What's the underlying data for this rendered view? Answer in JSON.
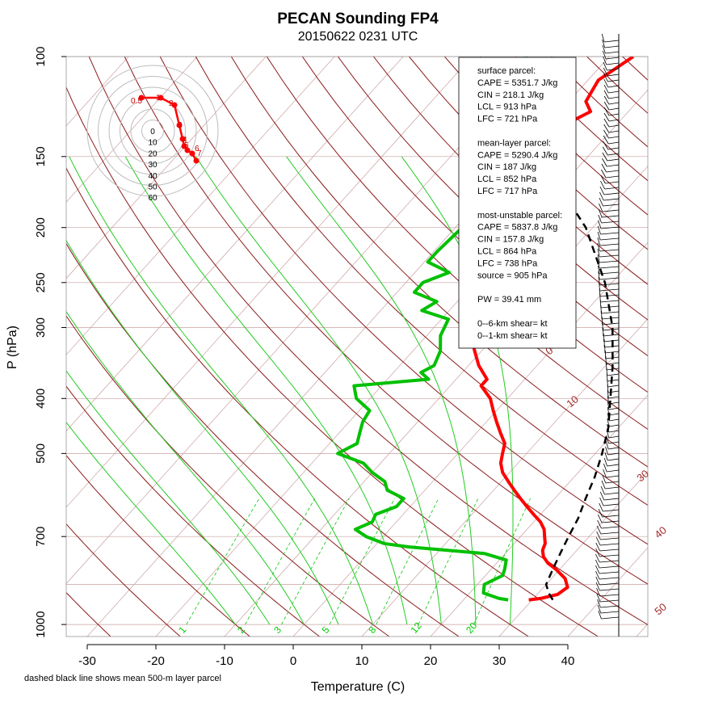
{
  "chart_data": {
    "type": "line",
    "title": "PECAN Sounding FP4",
    "subtitle": "20150622 0231 UTC",
    "xlabel": "Temperature (C)",
    "ylabel": "P (hPa)",
    "xlim": [
      -33,
      47
    ],
    "ylim": [
      1050,
      100
    ],
    "x_ticks": [
      "-30",
      "-20",
      "-10",
      "0",
      "10",
      "20",
      "30",
      "40"
    ],
    "x_tick_values": [
      -30,
      -20,
      -10,
      0,
      10,
      20,
      30,
      40
    ],
    "y_ticks": [
      "100",
      "150",
      "200",
      "250",
      "300",
      "400",
      "500",
      "700",
      "1000"
    ],
    "y_tick_values": [
      100,
      150,
      200,
      250,
      300,
      400,
      500,
      700,
      1000
    ],
    "y_scale": "log",
    "skew": "skew-T log-P",
    "footnote": "dashed black line shows mean 500-m layer parcel",
    "series": [
      {
        "name": "",
        "color": "#ff0000",
        "p": [
          905,
          900,
          885,
          860,
          830,
          800,
          780,
          760,
          740,
          720,
          700,
          680,
          660,
          640,
          620,
          600,
          580,
          560,
          540,
          520,
          500,
          480,
          460,
          440,
          420,
          400,
          380,
          370,
          350,
          330,
          310,
          290,
          270,
          250,
          230,
          210,
          200,
          190,
          170,
          155,
          150,
          145,
          140,
          135,
          130,
          125,
          120,
          115,
          110,
          105,
          100
        ],
        "t": [
          29.5,
          31,
          33,
          33.5,
          32,
          29.5,
          27.5,
          26,
          25,
          24.5,
          23.5,
          22.5,
          21,
          19,
          17,
          15,
          13,
          11,
          9,
          7.5,
          6.5,
          5.5,
          3.5,
          1.5,
          -0.5,
          -2.5,
          -5.5,
          -5.5,
          -8.5,
          -11,
          -13.5,
          -16,
          -18.5,
          -21,
          -24,
          -27.5,
          -29,
          -30,
          -32,
          -33,
          -31.5,
          -32.5,
          -31,
          -29.5,
          -27,
          -25.5,
          -27.5,
          -28,
          -28.5,
          -27.5,
          -26.5
        ]
      },
      {
        "name": "",
        "color": "#00c000",
        "p": [
          905,
          900,
          880,
          850,
          820,
          800,
          770,
          750,
          730,
          720,
          700,
          680,
          660,
          640,
          620,
          600,
          580,
          560,
          540,
          520,
          500,
          480,
          460,
          440,
          420,
          400,
          390,
          380,
          370,
          360,
          350,
          330,
          310,
          290,
          280,
          270,
          260,
          250,
          240,
          230,
          220,
          200,
          180,
          160,
          150,
          130,
          115,
          100
        ],
        "td": [
          26.5,
          25,
          22,
          21,
          22.5,
          22,
          21,
          17,
          5,
          1,
          -2.5,
          -5,
          -3.5,
          -4,
          -2,
          -2,
          -5.5,
          -7,
          -10,
          -12.5,
          -17.5,
          -16,
          -17,
          -18,
          -18.5,
          -22,
          -23,
          -24,
          -14,
          -16,
          -15,
          -16,
          -18,
          -19,
          -24,
          -23,
          -27.5,
          -27.5,
          -25,
          -29.5,
          -29.5,
          -29,
          -32,
          -32.5,
          -34,
          -38,
          -40,
          -42
        ]
      },
      {
        "name": "",
        "color": "#000000",
        "style": "dashed",
        "p": [
          905,
          880,
          850,
          800,
          750,
          700,
          650,
          600,
          550,
          500,
          450,
          400,
          350,
          300,
          250,
          200,
          150,
          100
        ],
        "t": [
          33,
          31.5,
          30,
          29,
          28,
          27,
          26,
          24.5,
          23,
          21,
          18.5,
          15,
          11,
          6,
          -1,
          -11,
          -27,
          -52
        ]
      }
    ],
    "dry_adiabat_labels": [
      "0",
      "10",
      "30",
      "40",
      "50"
    ],
    "mixing_ratio_labels": [
      "1",
      "2",
      "3",
      "5",
      "8",
      "12",
      "20"
    ],
    "hodograph": {
      "ring_labels": [
        "0",
        "10",
        "20",
        "30",
        "40",
        "50",
        "60"
      ],
      "height_labels": [
        "0.5",
        "1",
        "2",
        "3",
        "4",
        "5",
        "6",
        "7",
        "8"
      ]
    }
  },
  "info_box": {
    "lines": [
      "surface parcel:",
      "CAPE = 5351.7 J/kg",
      "CIN = 218.1 J/kg",
      "LCL = 913 hPa",
      "LFC = 721 hPa",
      "",
      "mean-layer parcel:",
      "CAPE = 5290.4 J/kg",
      "CIN = 187 J/kg",
      "LCL = 852 hPa",
      "LFC = 717 hPa",
      "",
      "most-unstable parcel:",
      "CAPE = 5837.8 J/kg",
      "CIN = 157.8 J/kg",
      "LCL = 864 hPa",
      "LFC = 738 hPa",
      "source = 905 hPa",
      "",
      "PW =  39.41 mm",
      "",
      "0--6-km shear=  kt",
      "0--1-km shear=  kt"
    ]
  }
}
